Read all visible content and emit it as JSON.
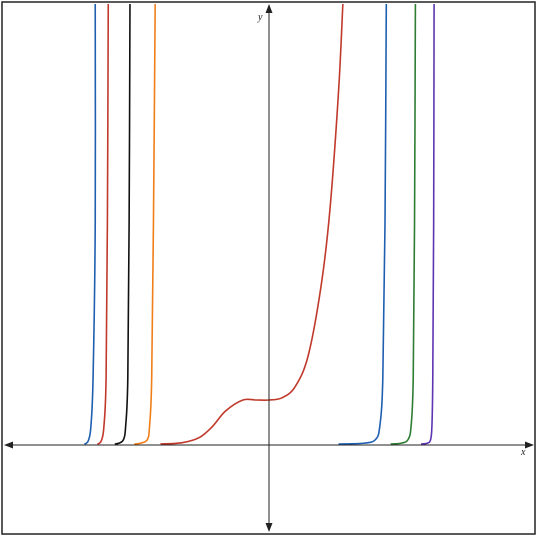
{
  "chart_data": {
    "type": "line",
    "title": "",
    "xlabel": "x",
    "ylabel": "y",
    "xlim": [
      -6.1,
      6.1
    ],
    "ylim": [
      -2,
      10
    ],
    "grid": false,
    "legend": "none",
    "series": [
      {
        "color": "#1f5fb0",
        "x": [
          -4.25,
          -4.2,
          -4.15,
          -4.1,
          -4.05,
          -4.0,
          -4.0
        ],
        "y": [
          0.0,
          0.02,
          0.1,
          0.4,
          1.5,
          5.0,
          10.0
        ]
      },
      {
        "color": "#c0392b",
        "x": [
          -3.95,
          -3.9,
          -3.85,
          -3.8,
          -3.75,
          -3.72,
          -3.7
        ],
        "y": [
          0.0,
          0.02,
          0.1,
          0.4,
          1.5,
          5.0,
          10.0
        ]
      },
      {
        "color": "#111111",
        "x": [
          -3.55,
          -3.45,
          -3.35,
          -3.3,
          -3.25,
          -3.22,
          -3.2
        ],
        "y": [
          0.0,
          0.02,
          0.1,
          0.4,
          1.5,
          5.0,
          10.0
        ]
      },
      {
        "color": "#f07f1a",
        "x": [
          -3.1,
          -2.95,
          -2.8,
          -2.75,
          -2.7,
          -2.66,
          -2.62
        ],
        "y": [
          0.0,
          0.02,
          0.1,
          0.4,
          1.5,
          5.0,
          10.0
        ]
      },
      {
        "color": "#c0392b",
        "x": [
          -2.5,
          -2.0,
          -1.6,
          -1.3,
          -1.0,
          -0.6,
          -0.3,
          0.0,
          0.3,
          0.6,
          0.9,
          1.2,
          1.4,
          1.6,
          1.7
        ],
        "y": [
          0.0,
          0.03,
          0.15,
          0.4,
          0.75,
          1.0,
          1.0,
          1.0,
          1.05,
          1.3,
          2.0,
          3.6,
          5.3,
          8.0,
          10.0
        ]
      },
      {
        "color": "#1f5fb0",
        "x": [
          1.6,
          2.2,
          2.45,
          2.55,
          2.62,
          2.67,
          2.7
        ],
        "y": [
          0.0,
          0.02,
          0.1,
          0.4,
          1.5,
          5.0,
          10.0
        ]
      },
      {
        "color": "#2e7d32",
        "x": [
          2.8,
          3.05,
          3.2,
          3.27,
          3.32,
          3.35,
          3.37
        ],
        "y": [
          0.0,
          0.02,
          0.1,
          0.4,
          1.5,
          5.0,
          10.0
        ]
      },
      {
        "color": "#5e35b1",
        "x": [
          3.5,
          3.65,
          3.72,
          3.75,
          3.77,
          3.79,
          3.8
        ],
        "y": [
          0.0,
          0.02,
          0.1,
          0.4,
          1.5,
          5.0,
          10.0
        ]
      }
    ]
  }
}
